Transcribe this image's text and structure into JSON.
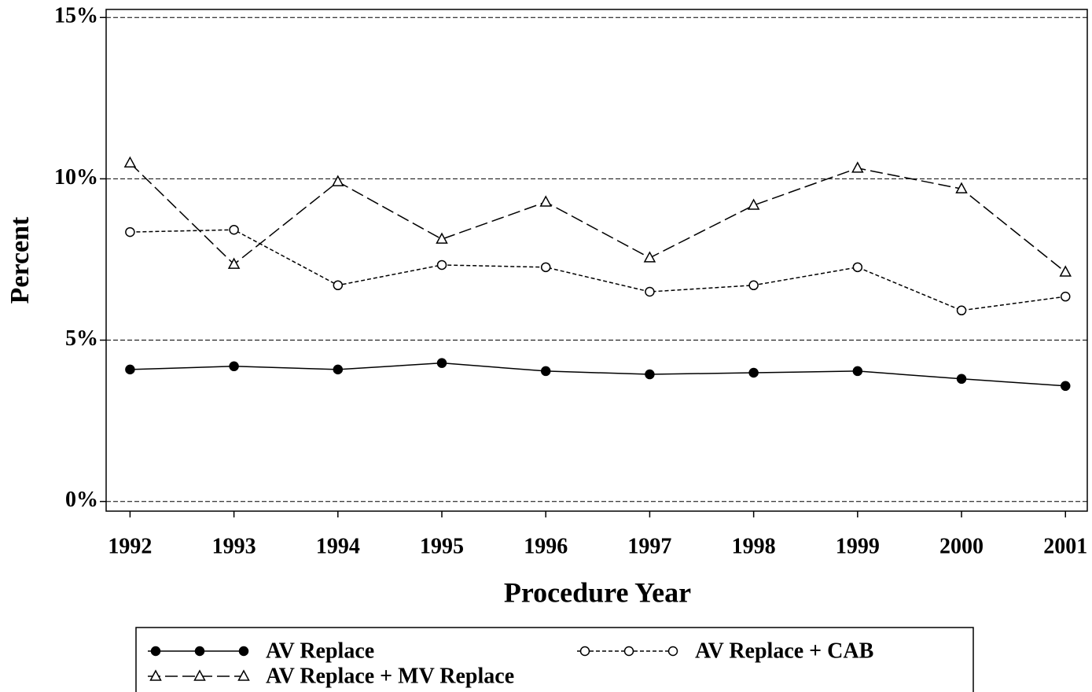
{
  "chart_data": {
    "type": "line",
    "x_label": "Procedure Year",
    "y_label": "Percent",
    "x": [
      1992,
      1993,
      1994,
      1995,
      1996,
      1997,
      1998,
      1999,
      2000,
      2001
    ],
    "xlim": [
      1991.77,
      2001.21
    ],
    "xticks": [
      1992,
      1993,
      1994,
      1995,
      1996,
      1997,
      1998,
      1999,
      2000,
      2001
    ],
    "ylim": [
      -0.3,
      15.25
    ],
    "yticks": [
      {
        "value": 0,
        "label": "0%"
      },
      {
        "value": 5,
        "label": "5%"
      },
      {
        "value": 10,
        "label": "10%"
      },
      {
        "value": 15,
        "label": "15%"
      }
    ],
    "grid": true,
    "series": [
      {
        "name": "AV Replace",
        "color": "#000000",
        "marker": "filled-circle",
        "dash": "solid",
        "values": [
          4.09,
          4.19,
          4.09,
          4.29,
          4.04,
          3.94,
          3.99,
          4.04,
          3.8,
          3.58
        ]
      },
      {
        "name": "AV Replace + CAB",
        "color": "#000000",
        "marker": "open-circle",
        "dash": "short",
        "values": [
          8.35,
          8.42,
          6.7,
          7.33,
          7.26,
          6.5,
          6.7,
          7.26,
          5.92,
          6.35
        ]
      },
      {
        "name": "AV Replace + MV Replace",
        "color": "#000000",
        "marker": "open-triangle",
        "dash": "long",
        "values": [
          10.49,
          7.35,
          9.91,
          8.13,
          9.28,
          7.55,
          9.18,
          10.33,
          9.69,
          7.11
        ]
      }
    ]
  }
}
